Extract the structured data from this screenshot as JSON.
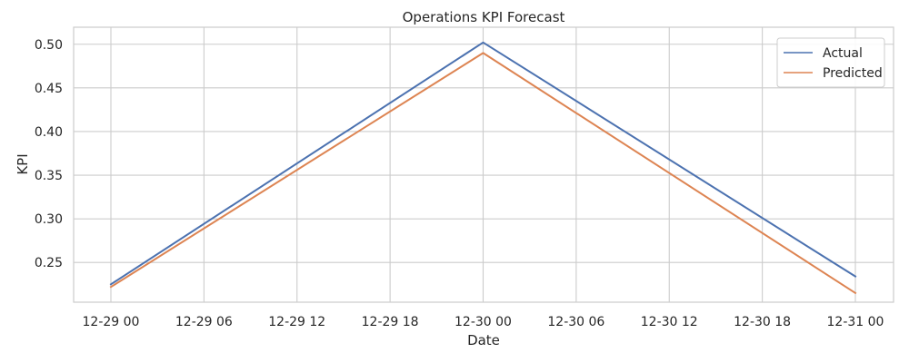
{
  "chart_data": {
    "type": "line",
    "title": "Operations KPI Forecast",
    "xlabel": "Date",
    "ylabel": "KPI",
    "x": [
      "12-29 00",
      "12-30 00",
      "12-31 00"
    ],
    "series": [
      {
        "name": "Actual",
        "color": "#4c72b0",
        "values": [
          0.225,
          0.502,
          0.234
        ]
      },
      {
        "name": "Predicted",
        "color": "#dd8452",
        "values": [
          0.222,
          0.49,
          0.215
        ]
      }
    ],
    "x_ticks": [
      "12-29 00",
      "12-29 06",
      "12-29 12",
      "12-29 18",
      "12-30 00",
      "12-30 06",
      "12-30 12",
      "12-30 18",
      "12-31 00"
    ],
    "y_ticks": [
      "0.25",
      "0.30",
      "0.35",
      "0.40",
      "0.45",
      "0.50"
    ],
    "ylim": [
      0.2045,
      0.5195
    ],
    "grid": true,
    "legend_position": "top-right"
  }
}
